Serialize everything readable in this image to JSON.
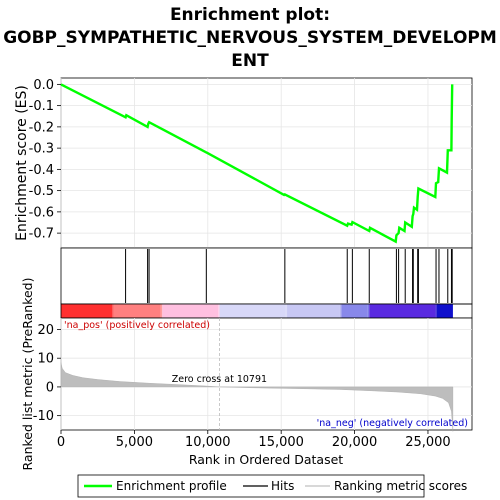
{
  "chart_data": {
    "type": "line",
    "title_lines": [
      "Enrichment plot:",
      "GOBP_SYMPATHETIC_NERVOUS_SYSTEM_DEVELOPM",
      "ENT"
    ],
    "es_panel": {
      "ylabel": "Enrichment score (ES)",
      "ylim": [
        -0.77,
        0.03
      ],
      "yticks": [
        0.0,
        -0.1,
        -0.2,
        -0.3,
        -0.4,
        -0.5,
        -0.6,
        -0.7
      ],
      "ytick_labels": [
        "0.0",
        "-0.1",
        "-0.2",
        "-0.3",
        "-0.4",
        "-0.5",
        "-0.6",
        "-0.7"
      ],
      "series": [
        {
          "name": "Enrichment profile",
          "color": "#00ff00",
          "points": [
            [
              0,
              0.0
            ],
            [
              4400,
              -0.155
            ],
            [
              4450,
              -0.145
            ],
            [
              5900,
              -0.2
            ],
            [
              5950,
              -0.185
            ],
            [
              6000,
              -0.178
            ],
            [
              9900,
              -0.32
            ],
            [
              9950,
              -0.322
            ],
            [
              15200,
              -0.52
            ],
            [
              15250,
              -0.518
            ],
            [
              19500,
              -0.665
            ],
            [
              19550,
              -0.655
            ],
            [
              19800,
              -0.66
            ],
            [
              19850,
              -0.648
            ],
            [
              21000,
              -0.69
            ],
            [
              21050,
              -0.675
            ],
            [
              22800,
              -0.74
            ],
            [
              22850,
              -0.71
            ],
            [
              23000,
              -0.7
            ],
            [
              23050,
              -0.675
            ],
            [
              23400,
              -0.69
            ],
            [
              23450,
              -0.65
            ],
            [
              23900,
              -0.67
            ],
            [
              23950,
              -0.62
            ],
            [
              24000,
              -0.61
            ],
            [
              24050,
              -0.58
            ],
            [
              24250,
              -0.59
            ],
            [
              24300,
              -0.53
            ],
            [
              24350,
              -0.49
            ],
            [
              25500,
              -0.53
            ],
            [
              25550,
              -0.465
            ],
            [
              25700,
              -0.46
            ],
            [
              25750,
              -0.395
            ],
            [
              26300,
              -0.415
            ],
            [
              26350,
              -0.31
            ],
            [
              26600,
              -0.31
            ],
            [
              26620,
              -0.165
            ],
            [
              26650,
              0.0
            ]
          ]
        }
      ]
    },
    "hits": [
      4400,
      5900,
      6000,
      9900,
      15250,
      19500,
      19850,
      21000,
      22850,
      23000,
      23450,
      23950,
      24000,
      24300,
      24350,
      25550,
      25750,
      26350,
      26600,
      26650
    ],
    "rank_panel": {
      "ylabel": "Ranked list metric (PreRanked)",
      "xlabel": "Rank in Ordered Dataset",
      "xlim": [
        0,
        28000
      ],
      "xticks": [
        0,
        5000,
        10000,
        15000,
        20000,
        25000
      ],
      "xtick_labels": [
        "0",
        "5,000",
        "10,000",
        "15,000",
        "20,000",
        "25,000"
      ],
      "ylim": [
        -15,
        24
      ],
      "yticks": [
        20,
        10,
        0,
        -10
      ],
      "ytick_labels": [
        "20",
        "10",
        "0",
        "-10"
      ],
      "n_genes": 26700,
      "metric_profile": [
        [
          0,
          8.5
        ],
        [
          80,
          6.5
        ],
        [
          300,
          5.0
        ],
        [
          800,
          4.0
        ],
        [
          1500,
          3.2
        ],
        [
          2500,
          2.6
        ],
        [
          4000,
          1.9
        ],
        [
          6000,
          1.3
        ],
        [
          8000,
          0.8
        ],
        [
          10000,
          0.3
        ],
        [
          10791,
          0.0
        ],
        [
          13000,
          -0.3
        ],
        [
          16000,
          -0.6
        ],
        [
          19000,
          -0.9
        ],
        [
          21000,
          -1.3
        ],
        [
          23000,
          -1.8
        ],
        [
          24500,
          -2.4
        ],
        [
          25500,
          -3.2
        ],
        [
          26000,
          -4.0
        ],
        [
          26400,
          -5.5
        ],
        [
          26600,
          -8.5
        ],
        [
          26700,
          -15.5
        ]
      ],
      "zero_cross": 10791,
      "zero_cross_label": "Zero cross at 10791",
      "pos_label": "'na_pos' (positively correlated)",
      "neg_label": "'na_neg' (negatively correlated)",
      "pos_label_color": "#cc0000",
      "neg_label_color": "#0000cc"
    },
    "color_bar_stops": [
      [
        0,
        "#ff3030"
      ],
      [
        3500,
        "#ff5f5f"
      ],
      [
        3600,
        "#ff8080"
      ],
      [
        6800,
        "#ff9c9c"
      ],
      [
        6900,
        "#ffc0e0"
      ],
      [
        10700,
        "#ffd0ea"
      ],
      [
        10800,
        "#d8d8f8"
      ],
      [
        15300,
        "#dcdcf8"
      ],
      [
        15400,
        "#c8c8f4"
      ],
      [
        19000,
        "#b8b8f0"
      ],
      [
        19100,
        "#8888ea"
      ],
      [
        20900,
        "#7c7ce8"
      ],
      [
        21000,
        "#5a2ae0"
      ],
      [
        25500,
        "#4020d8"
      ],
      [
        25600,
        "#1010cc"
      ],
      [
        26700,
        "#0808b8"
      ]
    ],
    "legend": [
      {
        "label": "Enrichment profile",
        "color": "#00ff00"
      },
      {
        "label": "Hits",
        "color": "#000000"
      },
      {
        "label": "Ranking metric scores",
        "color": "#c0c0c0"
      }
    ]
  }
}
